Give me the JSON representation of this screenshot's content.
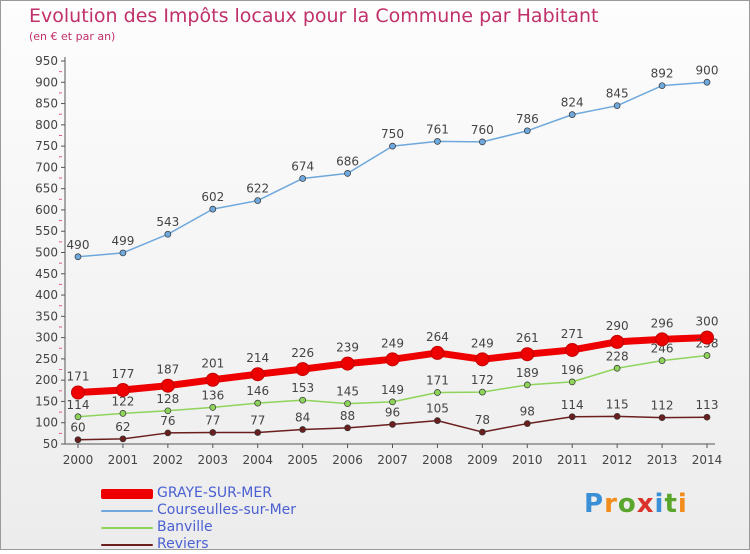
{
  "header": {
    "title": "Evolution des Impôts locaux pour la Commune par Habitant",
    "subtitle": "(en € et par an)"
  },
  "logo": {
    "text": "Proxiti"
  },
  "chart_data": {
    "type": "line",
    "title": "Evolution des Impôts locaux pour la Commune par Habitant",
    "subtitle": "(en € et par an)",
    "x": [
      2000,
      2001,
      2002,
      2003,
      2004,
      2005,
      2006,
      2007,
      2008,
      2009,
      2010,
      2011,
      2012,
      2013,
      2014
    ],
    "ylim": [
      50,
      950
    ],
    "yticks": [
      50,
      100,
      150,
      200,
      250,
      300,
      350,
      400,
      450,
      500,
      550,
      600,
      650,
      700,
      750,
      800,
      850,
      900,
      950
    ],
    "grid": false,
    "legend_position": "bottom-left",
    "series": [
      {
        "name": "Reviers",
        "color": "#6b1e1e",
        "values": [
          60,
          62,
          76,
          77,
          77,
          84,
          88,
          96,
          105,
          78,
          98,
          114,
          115,
          112,
          113
        ]
      },
      {
        "name": "Banville",
        "color": "#8fd45a",
        "values": [
          114,
          122,
          128,
          136,
          146,
          153,
          145,
          149,
          171,
          172,
          189,
          196,
          228,
          246,
          258
        ]
      },
      {
        "name": "Courseulles-sur-Mer",
        "color": "#6fa8dc",
        "values": [
          490,
          499,
          543,
          602,
          622,
          674,
          686,
          750,
          761,
          760,
          786,
          824,
          845,
          892,
          900
        ]
      },
      {
        "name": "GRAYE-SUR-MER",
        "color": "#ee0000",
        "values": [
          171,
          177,
          187,
          201,
          214,
          226,
          239,
          249,
          264,
          249,
          261,
          271,
          290,
          296,
          300
        ]
      }
    ],
    "legend_order": [
      "GRAYE-SUR-MER",
      "Courseulles-sur-Mer",
      "Banville",
      "Reviers"
    ]
  }
}
